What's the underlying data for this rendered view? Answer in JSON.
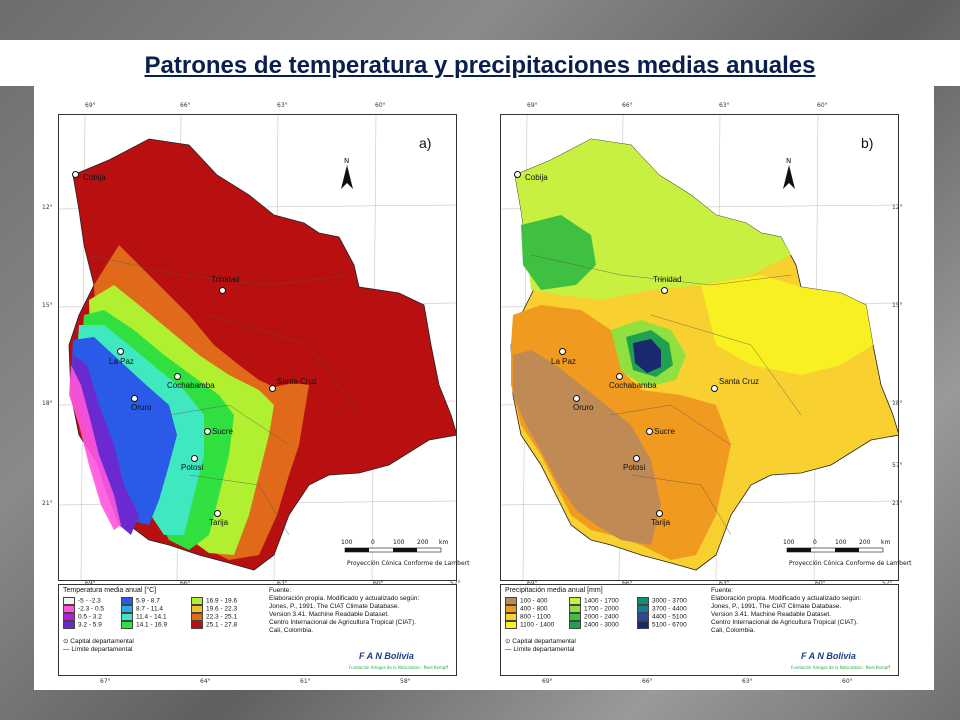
{
  "title": "Patrones de temperatura  y precipitaciones medias anuales",
  "top_ticks": [
    "69°",
    "66°",
    "63°",
    "60°"
  ],
  "side_ticks": [
    "12°",
    "15°",
    "18°",
    "21°"
  ],
  "bottom_ticks_a": [
    "69°",
    "66°",
    "63°",
    "60°",
    "57°"
  ],
  "bottom_ticks_b": [
    "69°",
    "66°",
    "63°",
    "60°",
    "57°"
  ],
  "outer_ticks": [
    "67°",
    "64°",
    "61°",
    "58°"
  ],
  "extra_side_tick": "57°",
  "panel_a": {
    "letter": "a)",
    "legend_title": "Temperatura media anual [°C]",
    "legend": [
      {
        "label": "-5 - -2.3",
        "color": "#f2f2f2"
      },
      {
        "label": "-2.3 - 0.5",
        "color": "#ff55dd"
      },
      {
        "label": "0.5 - 3.2",
        "color": "#b020d0"
      },
      {
        "label": "3.2 - 5.9",
        "color": "#6a2ad0"
      },
      {
        "label": "5.9 - 8.7",
        "color": "#2a5ae8"
      },
      {
        "label": "8.7 - 11.4",
        "color": "#2aa8f0"
      },
      {
        "label": "11.4 - 14.1",
        "color": "#40e8c0"
      },
      {
        "label": "14.1 - 16.9",
        "color": "#30e040"
      },
      {
        "label": "16.9 - 19.6",
        "color": "#b0f030"
      },
      {
        "label": "19.6 - 22.3",
        "color": "#f0c030"
      },
      {
        "label": "22.3 - 25.1",
        "color": "#e06a1a"
      },
      {
        "label": "25.1 - 27.8",
        "color": "#b81010"
      }
    ]
  },
  "panel_b": {
    "letter": "b)",
    "legend_title": "Precipitación media anual [mm]",
    "legend": [
      {
        "label": "100 - 400",
        "color": "#c08a55"
      },
      {
        "label": "400 - 800",
        "color": "#f09a20"
      },
      {
        "label": "800 - 1100",
        "color": "#f8d030"
      },
      {
        "label": "1100 - 1400",
        "color": "#f8f020"
      },
      {
        "label": "1400 - 1700",
        "color": "#c8f040"
      },
      {
        "label": "1700 - 2000",
        "color": "#90e040"
      },
      {
        "label": "2000 - 2400",
        "color": "#40c040"
      },
      {
        "label": "2400 - 3000",
        "color": "#20a050"
      },
      {
        "label": "3000 - 3700",
        "color": "#109070"
      },
      {
        "label": "3700 - 4400",
        "color": "#1a7a9a"
      },
      {
        "label": "4400 - 5100",
        "color": "#2a4aa0"
      },
      {
        "label": "5100 - 6700",
        "color": "#1a2870"
      }
    ]
  },
  "cities": [
    "Cobija",
    "Trinidad",
    "La Paz",
    "Cochabamba",
    "Santa Cruz",
    "Oruro",
    "Sucre",
    "Potosi",
    "Tarija"
  ],
  "source": {
    "heading": "Fuente:",
    "lines": [
      "Elaboración propia. Modificado y actualizado según:",
      "Jones, P., 1991. The CIAT Climate Database.",
      "Version 3.41. Machine Readable Dataset.",
      "Centro Internacional de Agricultura Tropical (CIAT).",
      "Cali, Colombia."
    ]
  },
  "capital_label": "Capital departamental",
  "limit_label": "Límite departamental",
  "scale_labels": [
    "100",
    "0",
    "100",
    "200",
    "km"
  ],
  "projection": "Proyección Cónica Conforme de Lambert",
  "north_label": "N",
  "logo": {
    "text": "F A N Bolivia",
    "sub": "Fundación Amigos de la Naturaleza - Noel Kempff"
  },
  "colors": {
    "title": "#0a1f4e",
    "background": "#7a7a7a",
    "frame": "#333333"
  }
}
